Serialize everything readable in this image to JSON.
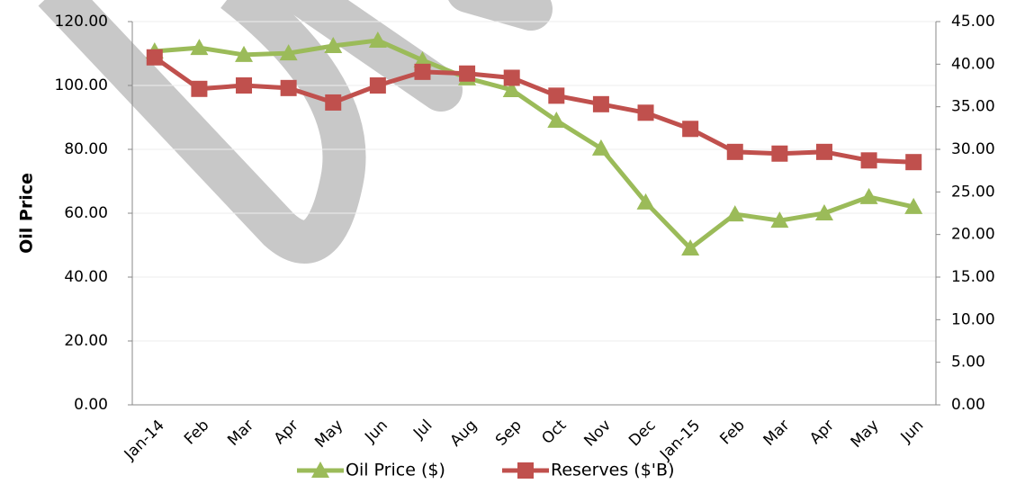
{
  "chart_data": {
    "type": "line",
    "y_label": "Oil Price",
    "categories": [
      "Jan-14",
      "Feb",
      "Mar",
      "Apr",
      "May",
      "Jun",
      "Jul",
      "Aug",
      "Sep",
      "Oct",
      "Nov",
      "Dec",
      "Jan-15",
      "Feb",
      "Mar",
      "Apr",
      "May",
      "Jun"
    ],
    "series": [
      {
        "name": "Oil Price ($)",
        "color": "#9bbb59",
        "marker": "triangle",
        "values": [
          110.7,
          111.8,
          109.6,
          110.1,
          112.4,
          114.1,
          107.9,
          102.3,
          98.6,
          89.0,
          80.3,
          63.4,
          49.0,
          59.7,
          57.7,
          60.0,
          65.1,
          62.0
        ]
      },
      {
        "name": "Reserves ($'B)",
        "color": "#c0504d",
        "marker": "square",
        "axis": "y2",
        "values": [
          40.8,
          37.1,
          37.5,
          37.2,
          35.5,
          37.5,
          39.1,
          38.9,
          38.4,
          36.3,
          35.3,
          34.3,
          32.4,
          29.7,
          29.5,
          29.7,
          28.7,
          28.5
        ]
      }
    ],
    "ylim": [
      0,
      120
    ],
    "yticks": [
      {
        "value": 0,
        "label": "0.00"
      },
      {
        "value": 20,
        "label": "20.00"
      },
      {
        "value": 40,
        "label": "40.00"
      },
      {
        "value": 60,
        "label": "60.00"
      },
      {
        "value": 80,
        "label": "80.00"
      },
      {
        "value": 100,
        "label": "100.00"
      },
      {
        "value": 120,
        "label": "120.00"
      }
    ],
    "y2lim": [
      0,
      45
    ],
    "y2ticks": [
      {
        "value": 0,
        "label": "0.00"
      },
      {
        "value": 5,
        "label": "5.00"
      },
      {
        "value": 10,
        "label": "10.00"
      },
      {
        "value": 15,
        "label": "15.00"
      },
      {
        "value": 20,
        "label": "20.00"
      },
      {
        "value": 25,
        "label": "25.00"
      },
      {
        "value": 30,
        "label": "30.00"
      },
      {
        "value": 35,
        "label": "35.00"
      },
      {
        "value": 40,
        "label": "40.00"
      },
      {
        "value": 45,
        "label": "45.00"
      }
    ],
    "grid": true,
    "legend": "bottom"
  }
}
